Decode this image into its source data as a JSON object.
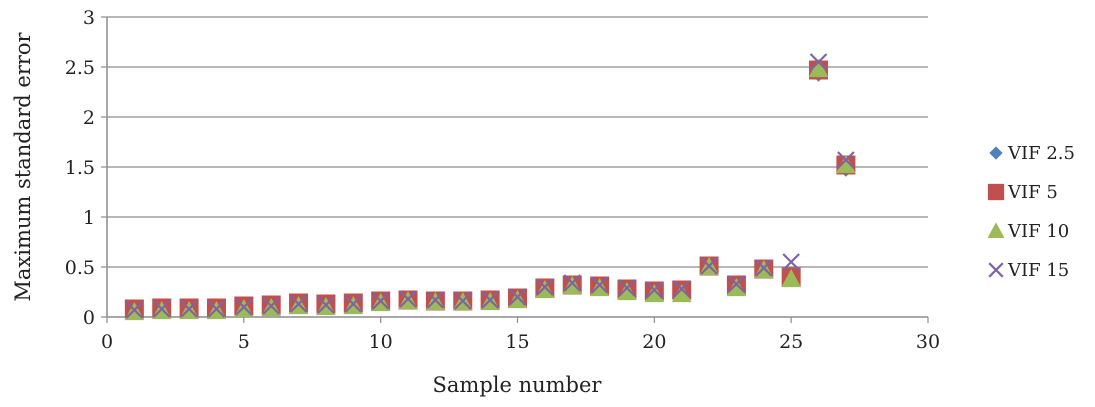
{
  "chart_data": {
    "type": "scatter",
    "title": "",
    "xlabel": "Sample number",
    "ylabel": "Maximum standard error",
    "xlim": [
      0,
      30
    ],
    "ylim": [
      0,
      3
    ],
    "x_ticks": [
      0,
      5,
      10,
      15,
      20,
      25,
      30
    ],
    "y_ticks": [
      0,
      0.5,
      1,
      1.5,
      2,
      2.5,
      3
    ],
    "x_tick_labels": [
      "0",
      "5",
      "10",
      "15",
      "20",
      "25",
      "30"
    ],
    "y_tick_labels": [
      "0",
      "0.5",
      "1",
      "1.5",
      "2",
      "2.5",
      "3"
    ],
    "grid": "horizontal",
    "legend_position": "right",
    "x": [
      1,
      2,
      3,
      4,
      5,
      6,
      7,
      8,
      9,
      10,
      11,
      12,
      13,
      14,
      15,
      16,
      17,
      18,
      19,
      20,
      21,
      22,
      23,
      24,
      25,
      26,
      27
    ],
    "series": [
      {
        "name": "VIF 2.5",
        "marker": "diamond",
        "color": "#4F81BD",
        "values": [
          0.07,
          0.08,
          0.08,
          0.08,
          0.1,
          0.11,
          0.13,
          0.12,
          0.13,
          0.15,
          0.17,
          0.16,
          0.16,
          0.17,
          0.19,
          0.28,
          0.32,
          0.3,
          0.27,
          0.25,
          0.26,
          0.5,
          0.31,
          0.47,
          0.38,
          2.43,
          1.48
        ]
      },
      {
        "name": "VIF 5",
        "marker": "square",
        "color": "#C0504D",
        "values": [
          0.08,
          0.09,
          0.09,
          0.09,
          0.11,
          0.12,
          0.14,
          0.13,
          0.14,
          0.16,
          0.17,
          0.16,
          0.16,
          0.17,
          0.19,
          0.29,
          0.32,
          0.31,
          0.28,
          0.26,
          0.27,
          0.51,
          0.32,
          0.48,
          0.4,
          2.47,
          1.52
        ]
      },
      {
        "name": "VIF 10",
        "marker": "triangle",
        "color": "#9BBB59",
        "values": [
          0.05,
          0.06,
          0.06,
          0.06,
          0.08,
          0.09,
          0.11,
          0.1,
          0.11,
          0.14,
          0.16,
          0.15,
          0.15,
          0.15,
          0.17,
          0.27,
          0.31,
          0.29,
          0.25,
          0.23,
          0.23,
          0.5,
          0.29,
          0.47,
          0.38,
          2.48,
          1.52
        ]
      },
      {
        "name": "VIF 15",
        "marker": "x",
        "color": "#8064A2",
        "values": [
          0.07,
          0.08,
          0.08,
          0.08,
          0.1,
          0.11,
          0.13,
          0.12,
          0.13,
          0.16,
          0.18,
          0.17,
          0.16,
          0.17,
          0.2,
          0.3,
          0.34,
          0.32,
          0.29,
          0.27,
          0.28,
          0.51,
          0.33,
          0.49,
          0.55,
          2.55,
          1.57
        ]
      }
    ]
  }
}
